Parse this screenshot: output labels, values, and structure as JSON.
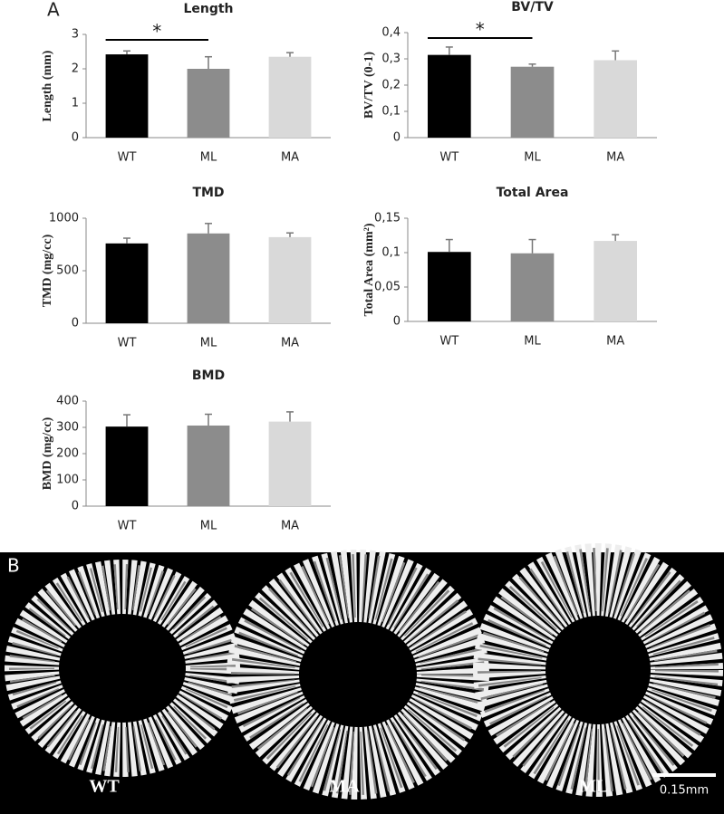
{
  "panel_labels": [
    "A",
    "B"
  ],
  "chart_data": [
    {
      "type": "bar",
      "title": "Length",
      "y_label": "Length (mm)",
      "categories": [
        "WT",
        "ML",
        "MA"
      ],
      "values": [
        2.42,
        2.0,
        2.35
      ],
      "errors": [
        0.1,
        0.35,
        0.12
      ],
      "colors": [
        "#000000",
        "#8c8c8c",
        "#d9d9d9"
      ],
      "ylim": [
        0,
        3
      ],
      "yticks": [
        0,
        1,
        2,
        3
      ],
      "significance": {
        "label": "*",
        "categories": [
          "WT",
          "ML"
        ]
      }
    },
    {
      "type": "bar",
      "title": "BV/TV",
      "y_label": "BV/TV (0-1)",
      "categories": [
        "WT",
        "ML",
        "MA"
      ],
      "values": [
        0.315,
        0.27,
        0.295
      ],
      "errors": [
        0.03,
        0.01,
        0.035
      ],
      "colors": [
        "#000000",
        "#8c8c8c",
        "#d9d9d9"
      ],
      "ylim": [
        0,
        0.4
      ],
      "yticks": [
        0,
        {
          "value": 0.1,
          "label": "0,1"
        },
        {
          "value": 0.2,
          "label": "0,2"
        },
        {
          "value": 0.3,
          "label": "0,3"
        },
        {
          "value": 0.4,
          "label": "0,4"
        }
      ],
      "significance": {
        "label": "*",
        "categories": [
          "WT",
          "ML"
        ]
      }
    },
    {
      "type": "bar",
      "title": "TMD",
      "y_label": "TMD (mg/cc)",
      "categories": [
        "WT",
        "ML",
        "MA"
      ],
      "values": [
        760,
        855,
        820
      ],
      "errors": [
        50,
        95,
        40
      ],
      "colors": [
        "#000000",
        "#8c8c8c",
        "#d9d9d9"
      ],
      "ylim": [
        0,
        1000
      ],
      "yticks": [
        0,
        500,
        1000
      ]
    },
    {
      "type": "bar",
      "title": "Total Area",
      "y_label": "Total Area (mm²)",
      "categories": [
        "WT",
        "ML",
        "MA"
      ],
      "values": [
        0.101,
        0.099,
        0.117
      ],
      "errors": [
        0.018,
        0.02,
        0.009
      ],
      "colors": [
        "#000000",
        "#8c8c8c",
        "#d9d9d9"
      ],
      "ylim": [
        0,
        0.15
      ],
      "yticks": [
        0,
        {
          "value": 0.05,
          "label": "0,05"
        },
        {
          "value": 0.1,
          "label": "0,1"
        },
        {
          "value": 0.15,
          "label": "0,15"
        }
      ]
    },
    {
      "type": "bar",
      "title": "BMD",
      "y_label": "BMD (mg/cc)",
      "categories": [
        "WT",
        "ML",
        "MA"
      ],
      "values": [
        303,
        307,
        322
      ],
      "errors": [
        45,
        43,
        37
      ],
      "colors": [
        "#000000",
        "#8c8c8c",
        "#d9d9d9"
      ],
      "ylim": [
        0,
        400
      ],
      "yticks": [
        0,
        100,
        200,
        300,
        400
      ]
    }
  ],
  "image_panel": {
    "labels": [
      "WT",
      "MA",
      "ML"
    ],
    "scale_bar": "0.15mm"
  }
}
